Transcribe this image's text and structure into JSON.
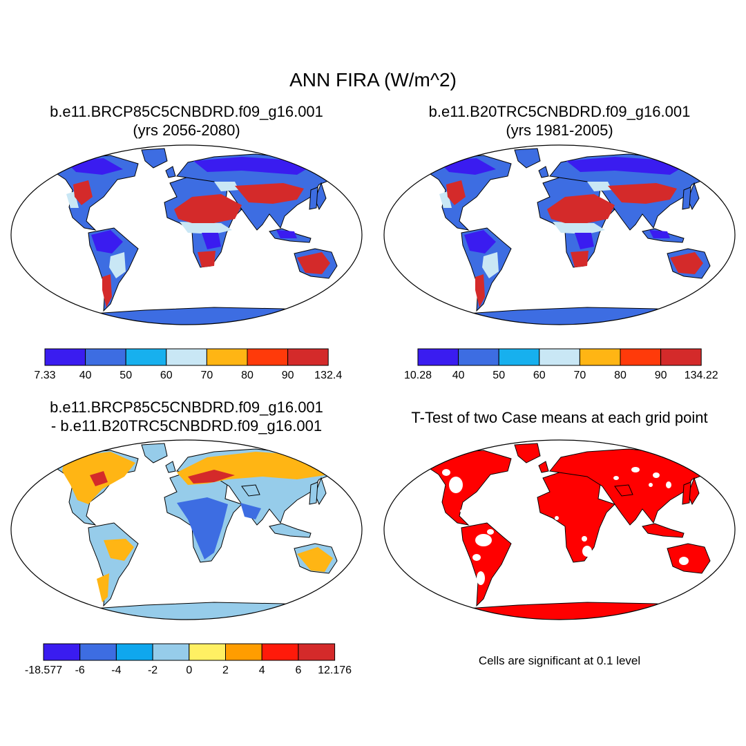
{
  "title": "ANN FIRA (W/m^2)",
  "panels": {
    "p1": {
      "line1": "b.e11.BRCP85C5CNBDRD.f09_g16.001",
      "line2": "(yrs 2056-2080)"
    },
    "p2": {
      "line1": "b.e11.B20TRC5CNBDRD.f09_g16.001",
      "line2": "(yrs 1981-2005)"
    },
    "p3": {
      "line1": "b.e11.BRCP85C5CNBDRD.f09_g16.001",
      "line2": "- b.e11.B20TRC5CNBDRD.f09_g16.001"
    },
    "p4": {
      "line1": "T-Test of two Case means at each grid point",
      "note": "Cells are significant at 0.1 level"
    }
  },
  "colorbars": {
    "cb1": {
      "colors": [
        "#3a1cf0",
        "#3d6de2",
        "#17b0ee",
        "#c9e7f5",
        "#ffb514",
        "#ff3a0a",
        "#d42a2a"
      ],
      "labels": [
        "7.33",
        "40",
        "50",
        "60",
        "70",
        "80",
        "90",
        "132.4"
      ]
    },
    "cb2": {
      "colors": [
        "#3a1cf0",
        "#3d6de2",
        "#17b0ee",
        "#c9e7f5",
        "#ffb514",
        "#ff3a0a",
        "#d42a2a"
      ],
      "labels": [
        "10.28",
        "40",
        "50",
        "60",
        "70",
        "80",
        "90",
        "134.22"
      ]
    },
    "cb3": {
      "colors": [
        "#3a1cf0",
        "#3d6de2",
        "#0fa7ee",
        "#96ccea",
        "#fff063",
        "#ff9d00",
        "#ff1a0a",
        "#d42a2a"
      ],
      "labels": [
        "-18.577",
        "-6",
        "-4",
        "-2",
        "0",
        "2",
        "4",
        "6",
        "12.176"
      ]
    }
  },
  "colors": {
    "significant": "#ff0000",
    "coast": "#000000"
  }
}
